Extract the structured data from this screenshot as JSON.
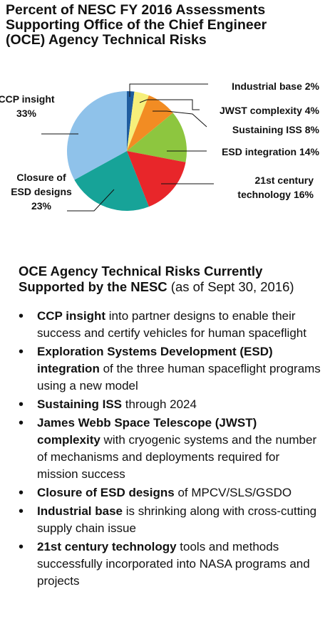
{
  "title_lines": [
    "Percent of NESC FY 2016 Assessments",
    "Supporting Office of the Chief Engineer",
    "(OCE) Agency Technical Risks"
  ],
  "chart_data": {
    "type": "pie",
    "title": "Percent of NESC FY 2016 Assessments Supporting Office of the Chief Engineer (OCE) Agency Technical Risks",
    "slices": [
      {
        "label": "Industrial base",
        "value": 2,
        "color": "#1f5c9e"
      },
      {
        "label": "JWST complexity",
        "value": 4,
        "color": "#f6ef7a"
      },
      {
        "label": "Sustaining ISS",
        "value": 8,
        "color": "#f28c23"
      },
      {
        "label": "ESD integration",
        "value": 14,
        "color": "#8dc63f"
      },
      {
        "label": "21st century technology",
        "value": 16,
        "color": "#e8262a"
      },
      {
        "label": "Closure of ESD designs",
        "value": 23,
        "color": "#17a398"
      },
      {
        "label": "CCP insight",
        "value": 33,
        "color": "#8fc2ea"
      }
    ],
    "slice_labels": [
      {
        "lines": [
          "Industrial base   2%"
        ]
      },
      {
        "lines": [
          "JWST complexity   4%"
        ]
      },
      {
        "lines": [
          "Sustaining ISS   8%"
        ]
      },
      {
        "lines": [
          "ESD integration   14%"
        ]
      },
      {
        "lines": [
          "21st century",
          "technology   16%"
        ]
      },
      {
        "lines": [
          "Closure of",
          "ESD designs",
          "23%"
        ]
      },
      {
        "lines": [
          "CCP insight",
          "33%"
        ]
      }
    ]
  },
  "section": {
    "heading_bold": "OCE Agency Technical Risks Currently Supported by the NESC",
    "heading_normal": "(as of Sept 30, 2016)"
  },
  "risks": [
    {
      "bold": "CCP insight",
      "text": "into partner designs to enable their success and certify vehicles for human spaceflight"
    },
    {
      "bold": "Exploration Systems Development (ESD) integration",
      "text": "of the three human spaceflight programs using a new model"
    },
    {
      "bold": "Sustaining ISS",
      "text": "through 2024"
    },
    {
      "bold": "James Webb Space Telescope (JWST) complexity",
      "text": "with cryogenic systems and the number of mechanisms and deployments required for mission success"
    },
    {
      "bold": "Closure of ESD designs",
      "text": "of MPCV/SLS/GSDO"
    },
    {
      "bold": "Industrial base",
      "text": "is shrinking along with cross-cutting supply chain issue"
    },
    {
      "bold": "21st century technology",
      "text": "tools and methods successfully incorporated into NASA programs and projects"
    }
  ]
}
